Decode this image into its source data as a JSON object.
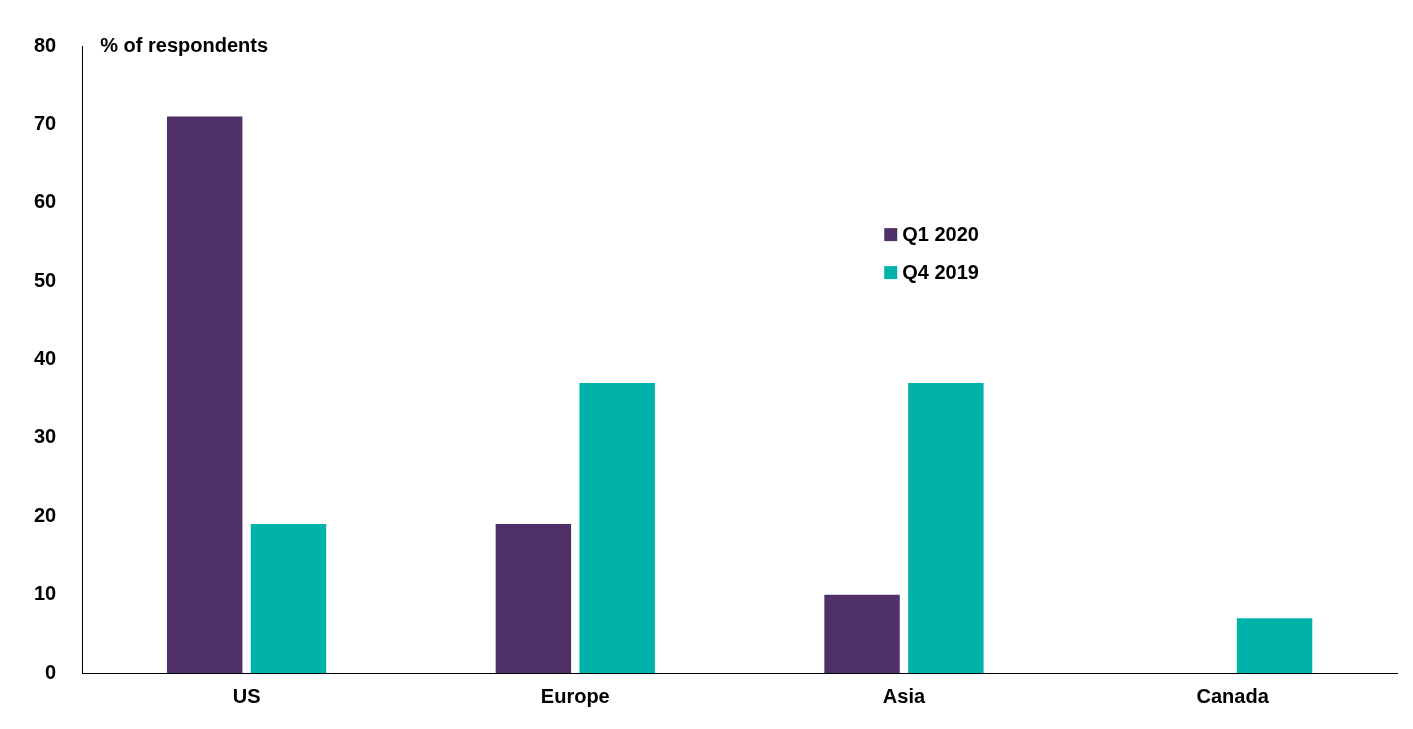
{
  "chart_data": {
    "type": "bar",
    "ylabel": "% of respondents",
    "categories": [
      "US",
      "Europe",
      "Asia",
      "Canada"
    ],
    "series": [
      {
        "name": "Q1 2020",
        "color": "#4f3068",
        "values": [
          71,
          19,
          10,
          0
        ]
      },
      {
        "name": "Q4 2019",
        "color": "#00b2a9",
        "values": [
          19,
          37,
          37,
          7
        ]
      }
    ],
    "ylim": [
      0,
      80
    ],
    "yticks": [
      0,
      10,
      20,
      30,
      40,
      50,
      60,
      70,
      80
    ],
    "grid": false,
    "legend": "right"
  }
}
